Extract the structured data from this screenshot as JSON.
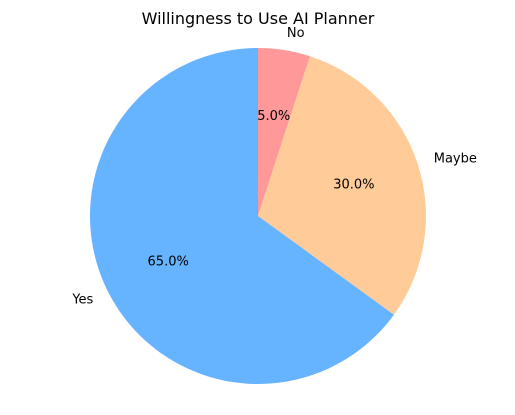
{
  "chart_data": {
    "type": "pie",
    "title": "Willingness to Use AI Planner",
    "categories": [
      "No",
      "Maybe",
      "Yes"
    ],
    "values": [
      5.0,
      30.0,
      65.0
    ],
    "percent_labels": [
      "5.0%",
      "30.0%",
      "65.0%"
    ],
    "colors": [
      "#ff9999",
      "#ffcc99",
      "#66b3ff"
    ],
    "start_angle_deg": 90,
    "direction": "clockwise",
    "legend": "none"
  }
}
